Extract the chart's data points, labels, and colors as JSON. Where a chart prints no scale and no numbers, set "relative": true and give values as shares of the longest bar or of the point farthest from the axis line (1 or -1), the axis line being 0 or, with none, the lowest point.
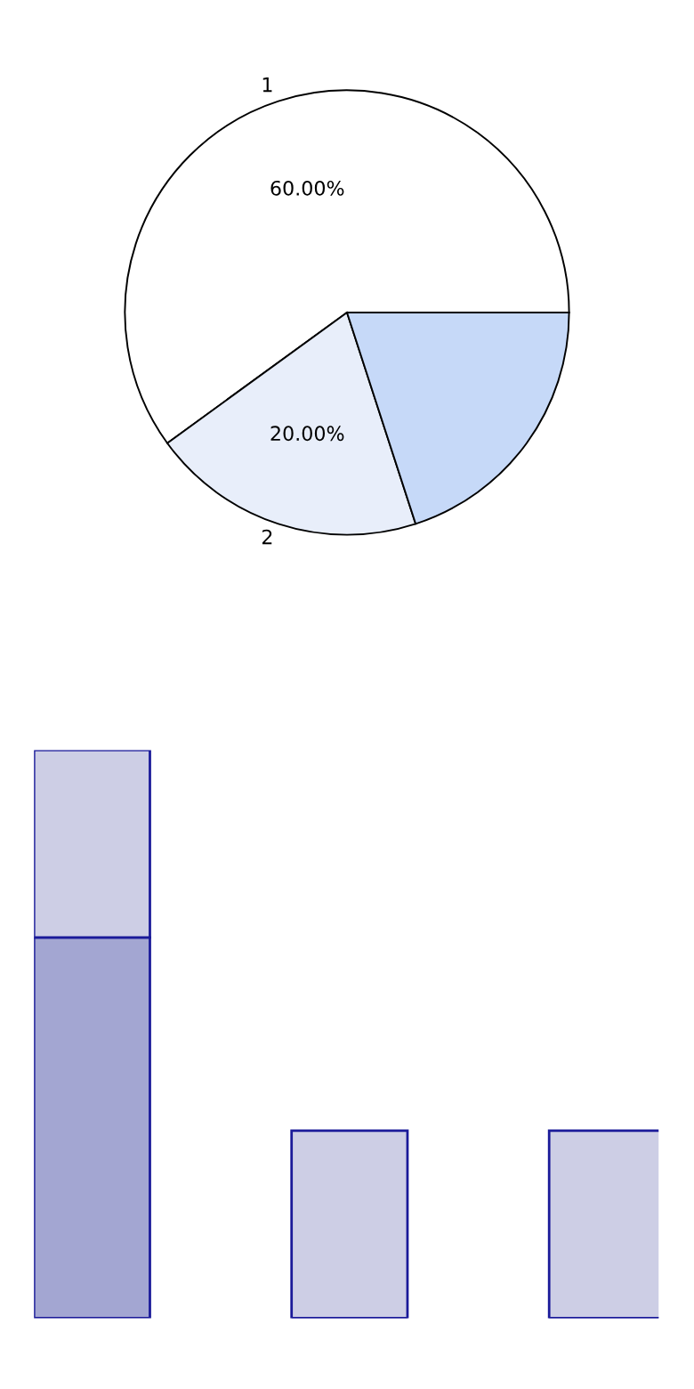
{
  "chart_data": [
    {
      "type": "pie",
      "categories": [
        "1",
        "2",
        null
      ],
      "values": [
        60,
        20,
        20
      ],
      "colors": [
        "#ffffff",
        "#e8eefa",
        "#c6d9f8"
      ],
      "value_labels": [
        "60.00%",
        "20.00%",
        null
      ]
    },
    {
      "type": "bar",
      "categories": [
        null,
        null,
        null
      ],
      "relative": true,
      "stacked": true,
      "series": [
        {
          "color": "#a3a6d2",
          "values": [
            0.67,
            null,
            null
          ]
        },
        {
          "color": "#cdcee5",
          "values": [
            0.33,
            0.33,
            0.33
          ]
        }
      ]
    }
  ]
}
